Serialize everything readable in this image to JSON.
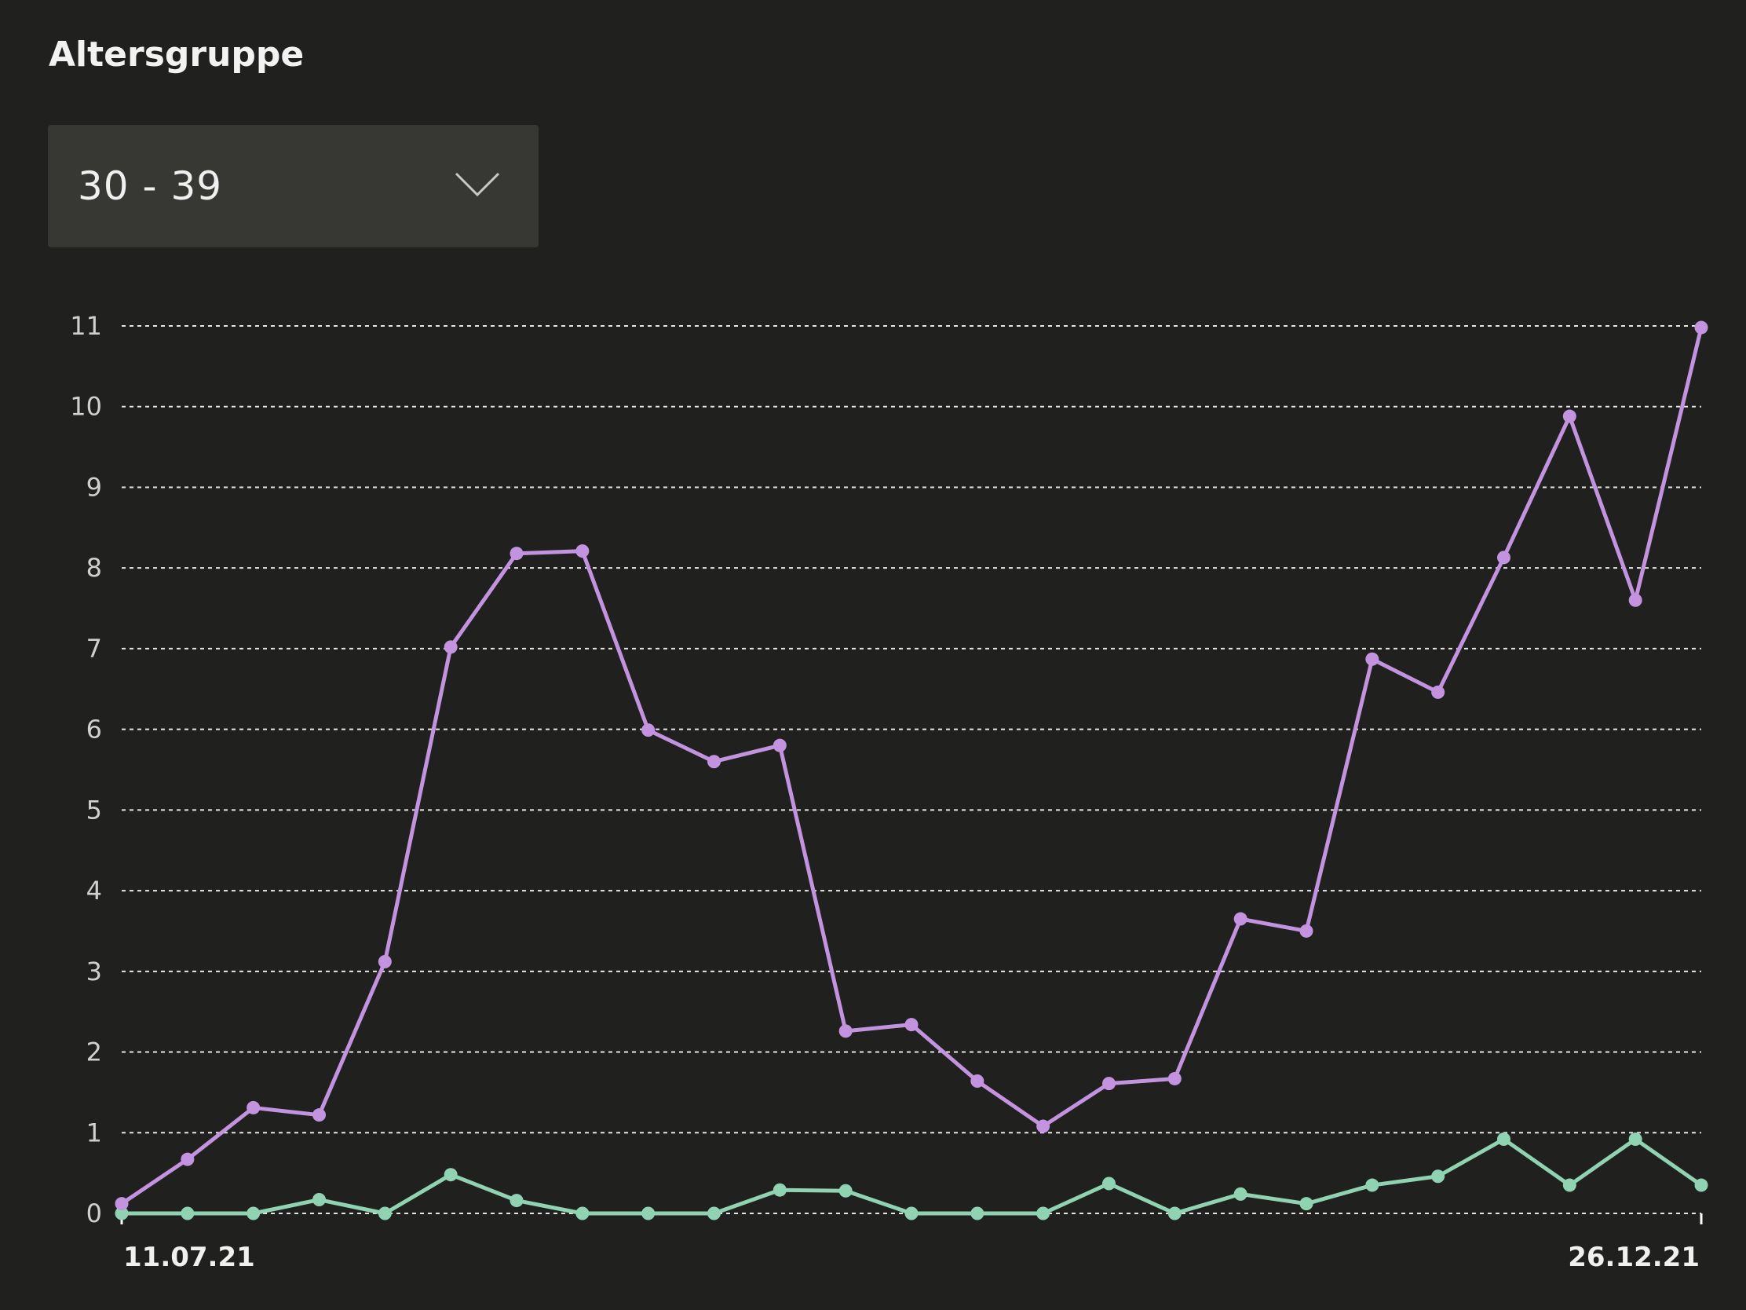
{
  "header": {
    "title": "Altersgruppe"
  },
  "age_select": {
    "value": "30 - 39",
    "icon": "chevron-down-icon"
  },
  "colors": {
    "background": "#20201e",
    "select_bg": "#373734",
    "series_purple": "#c493e0",
    "series_green": "#8fd3b2",
    "grid": "#e6e6e6"
  },
  "chart_data": {
    "type": "line",
    "title": "",
    "xlabel": "",
    "ylabel": "",
    "ylim": [
      0,
      11
    ],
    "yticks": [
      0,
      1,
      2,
      3,
      4,
      5,
      6,
      7,
      8,
      9,
      10,
      11
    ],
    "grid": true,
    "grid_style": "dashed-horizontal",
    "x_tick_labels": [
      "11.07.21",
      "26.12.21"
    ],
    "x": [
      "11.07.21",
      "18.07.21",
      "25.07.21",
      "01.08.21",
      "08.08.21",
      "15.08.21",
      "22.08.21",
      "29.08.21",
      "05.09.21",
      "12.09.21",
      "19.09.21",
      "26.09.21",
      "03.10.21",
      "10.10.21",
      "17.10.21",
      "24.10.21",
      "31.10.21",
      "07.11.21",
      "14.11.21",
      "21.11.21",
      "28.11.21",
      "05.12.21",
      "12.12.21",
      "19.12.21",
      "26.12.21"
    ],
    "series": [
      {
        "color": "#c493e0",
        "values": [
          0.12,
          0.67,
          1.31,
          1.22,
          3.12,
          7.02,
          8.18,
          8.21,
          5.99,
          5.6,
          5.8,
          2.26,
          2.34,
          1.64,
          1.08,
          1.61,
          1.67,
          3.65,
          3.5,
          6.87,
          6.46,
          8.13,
          9.88,
          7.6,
          10.98
        ]
      },
      {
        "color": "#8fd3b2",
        "values": [
          0.0,
          0.0,
          0.0,
          0.17,
          0.0,
          0.48,
          0.16,
          0.0,
          0.0,
          0.0,
          0.29,
          0.28,
          0.0,
          0.0,
          0.0,
          0.37,
          0.0,
          0.24,
          0.12,
          0.35,
          0.46,
          0.92,
          0.35,
          0.92,
          0.35
        ]
      }
    ]
  }
}
